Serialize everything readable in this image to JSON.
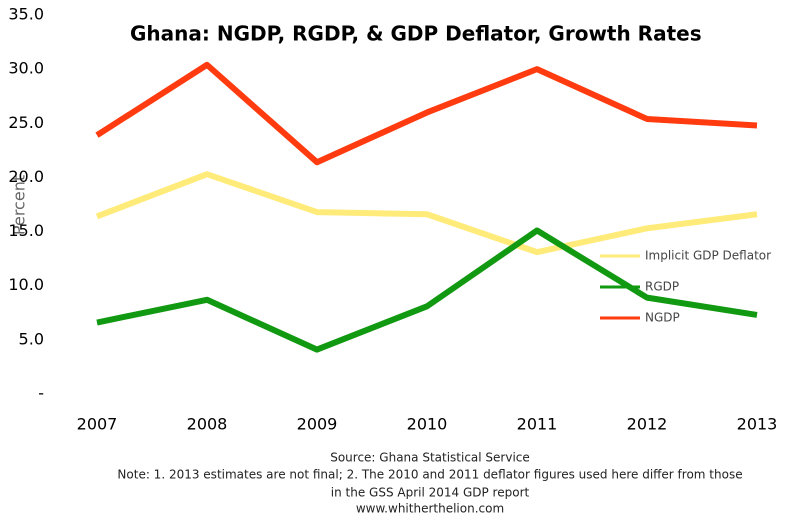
{
  "chart_data": {
    "type": "line",
    "title": "Ghana: NGDP, RGDP, & GDP Deflator, Growth Rates",
    "y_label": "Percent",
    "categories": [
      "2007",
      "2008",
      "2009",
      "2010",
      "2011",
      "2012",
      "2013"
    ],
    "series": [
      {
        "name": "Implicit GDP Deflator",
        "color": "#ffeb7a",
        "values": [
          16.4,
          20.3,
          16.8,
          16.6,
          13.1,
          15.3,
          16.6
        ]
      },
      {
        "name": "RGDP",
        "color": "#119911",
        "values": [
          6.6,
          8.7,
          4.1,
          8.1,
          15.1,
          8.9,
          7.3
        ]
      },
      {
        "name": "NGDP",
        "color": "#ff3b0f",
        "values": [
          23.9,
          30.4,
          21.4,
          26.0,
          30.0,
          25.4,
          24.8
        ]
      }
    ],
    "ylim": [
      0,
      35
    ],
    "yticks": [
      {
        "value": 0,
        "label": "-"
      },
      {
        "value": 5,
        "label": "5.0"
      },
      {
        "value": 10,
        "label": "10.0"
      },
      {
        "value": 15,
        "label": "15.0"
      },
      {
        "value": 20,
        "label": "20.0"
      },
      {
        "value": 25,
        "label": "25.0"
      },
      {
        "value": 30,
        "label": "30.0"
      },
      {
        "value": 35,
        "label": "35.0"
      }
    ],
    "grid": false,
    "legend": "right",
    "notes": [
      "Source: Ghana Statistical Service",
      "Note: 1. 2013 estimates are not final; 2. The 2010 and 2011 deflator figures used here differ from those",
      "in the GSS April 2014 GDP report",
      "www.whitherthelion.com"
    ]
  }
}
